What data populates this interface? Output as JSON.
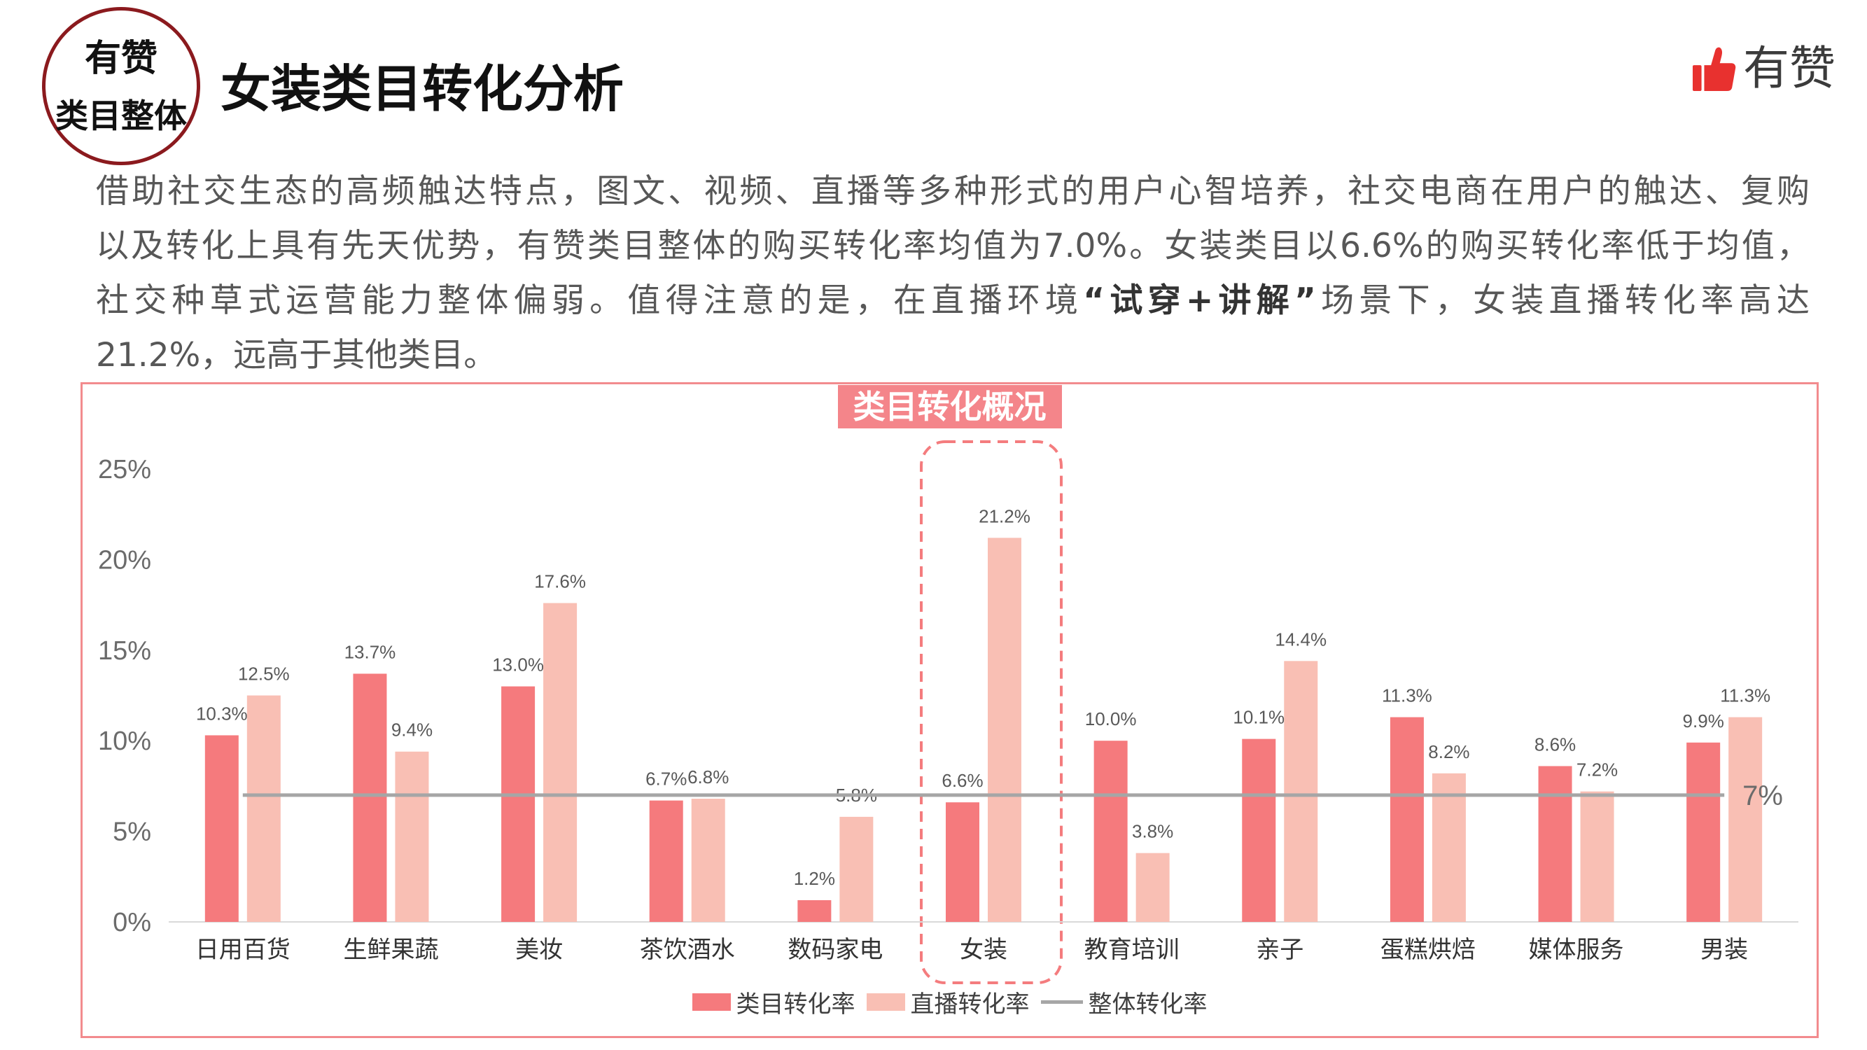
{
  "badge": {
    "line1": "有赞",
    "line2": "类目整体"
  },
  "title": "女装类目转化分析",
  "brand": {
    "name": "有赞",
    "icon": "thumbs-up-icon",
    "color": "#E8312F"
  },
  "intro": {
    "line1": "借助社交生态的高频触达特点，图文、视频、直播等多种形式的用户心智培养，社交电商在用户的触达、复购",
    "line2": "以及转化上具有先天优势，有赞类目整体的购买转化率均值为7.0%。女装类目以6.6%的购买转化率低于均值，",
    "line3_before": "社交种草式运营能力整体偏弱。值得注意的是，在直播环境",
    "line3_emphasis": "“试穿+讲解”",
    "line3_after": "场景下，女装直播转化率高达",
    "line4": "21.2%，远高于其他类目。"
  },
  "chart_data": {
    "type": "bar",
    "title": "类目转化概况",
    "categories": [
      "日用百货",
      "生鲜果蔬",
      "美妆",
      "茶饮酒水",
      "数码家电",
      "女装",
      "教育培训",
      "亲子",
      "蛋糕烘焙",
      "媒体服务",
      "男装"
    ],
    "series": [
      {
        "name": "类目转化率",
        "color": "#F57A7D",
        "values": [
          10.3,
          13.7,
          13.0,
          6.7,
          1.2,
          6.6,
          10.0,
          10.1,
          11.3,
          8.6,
          9.9
        ]
      },
      {
        "name": "直播转化率",
        "color": "#F9BFB4",
        "values": [
          12.5,
          9.4,
          17.6,
          6.8,
          5.8,
          21.2,
          3.8,
          14.4,
          8.2,
          7.2,
          11.3
        ]
      }
    ],
    "reference_line": {
      "name": "整体转化率",
      "value": 7,
      "label": "7%",
      "color": "#A6A6A6"
    },
    "y_unit": "%",
    "ylim": [
      0,
      25
    ],
    "y_ticks": [
      0,
      5,
      10,
      15,
      20,
      25
    ],
    "highlight_category": "女装",
    "highlight_color": "#F47C7E",
    "grid": false,
    "legend_position": "bottom",
    "xlabel": "",
    "ylabel": ""
  }
}
